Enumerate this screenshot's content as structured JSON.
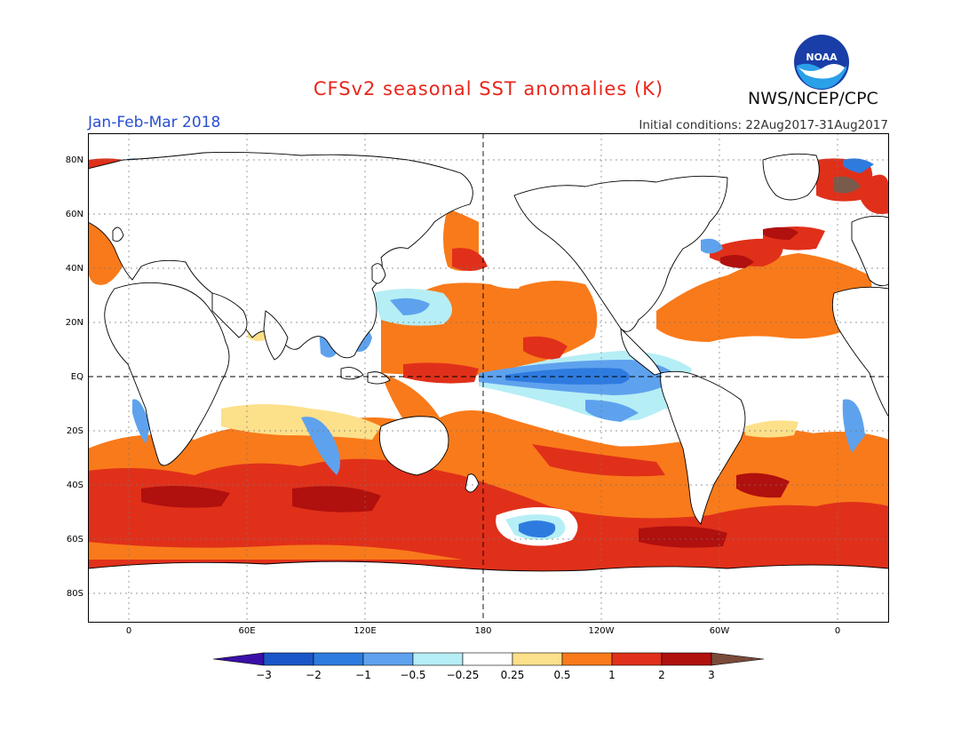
{
  "title": "CFSv2 seasonal SST anomalies (K)",
  "season": "Jan-Feb-Mar 2018",
  "initial_conditions": "Initial conditions: 22Aug2017-31Aug2017",
  "agency": "NWS/NCEP/CPC",
  "logo_text": "NOAA",
  "lat_labels": [
    "80N",
    "60N",
    "40N",
    "20N",
    "EQ",
    "20S",
    "40S",
    "60S",
    "80S"
  ],
  "lon_labels": [
    "0",
    "60E",
    "120E",
    "180",
    "120W",
    "60W",
    "0"
  ],
  "colorbar": {
    "labels": [
      "−3",
      "−2",
      "−1",
      "−0.5",
      "−0.25",
      "0.25",
      "0.5",
      "1",
      "2",
      "3"
    ],
    "colors": [
      "#3a0fa8",
      "#1a56c8",
      "#2e7be0",
      "#5ea2ee",
      "#b6eef6",
      "#ffffff",
      "#fde08a",
      "#f97a1a",
      "#e0301a",
      "#b0100e",
      "#7a4a3a"
    ]
  },
  "anomaly_colors": {
    "strong_cold": "#2e6cd8",
    "cold": "#5ea2ee",
    "weak_cold": "#b6eef6",
    "weak_warm": "#fde08a",
    "warm": "#f97a1a",
    "hot": "#e0301a",
    "very_hot": "#b0100e",
    "extreme": "#7a5a4a"
  }
}
